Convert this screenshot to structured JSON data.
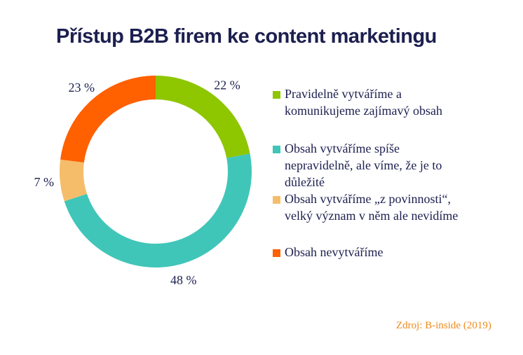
{
  "title": "Přístup B2B firem ke content marketingu",
  "source": "Zdroj: B-inside (2019)",
  "chart_data": {
    "type": "pie",
    "title": "Přístup B2B firem ke content marketingu",
    "series": [
      {
        "name": "Pravidelně vytváříme a komunikujeme zajímavý obsah",
        "value": 22,
        "label": "22 %",
        "color": "#8ec600"
      },
      {
        "name": "Obsah vytváříme spíše nepravidelně, ale víme, že je to důležité",
        "value": 48,
        "label": "48 %",
        "color": "#40c6b8"
      },
      {
        "name": "Obsah vytváříme „z povinnosti“, velký význam v něm ale nevidíme",
        "value": 7,
        "label": "7 %",
        "color": "#f5bd6a"
      },
      {
        "name": "Obsah nevytváříme",
        "value": 23,
        "label": "23 %",
        "color": "#ff6000"
      }
    ],
    "legend": [
      [
        "Pravidelně vytváříme a",
        "komunikujeme zajímavý obsah"
      ],
      [
        "Obsah vytváříme spíše",
        "nepravidelně, ale víme, že je to",
        "důležité"
      ],
      [
        "Obsah vytváříme „z povinnosti“,",
        "velký význam v něm ale nevidíme"
      ],
      [
        "Obsah nevytváříme"
      ]
    ],
    "legend_position": "right"
  }
}
